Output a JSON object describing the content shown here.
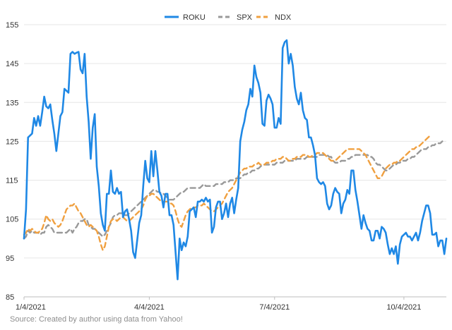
{
  "chart_data": {
    "type": "line",
    "title": "",
    "xlabel": "",
    "ylabel": "",
    "ylim": [
      85,
      155
    ],
    "y_ticks": [
      85,
      95,
      105,
      115,
      125,
      135,
      145,
      155
    ],
    "x_ticks": [
      "1/4/2021",
      "4/4/2021",
      "7/4/2021",
      "10/4/2021"
    ],
    "x_tick_index": [
      0,
      62,
      124,
      188
    ],
    "grid": "horizontal",
    "legend_position": "top-center",
    "source": "Source: Created by author using data from Yahoo!",
    "series": [
      {
        "name": "ROKU",
        "color": "#1f88e5",
        "style": "solid",
        "values": [
          100,
          107.5,
          126,
          126.5,
          127,
          131,
          129,
          131.5,
          129,
          132.5,
          136.5,
          134,
          133.5,
          134.5,
          130.5,
          127,
          122.5,
          127,
          131.5,
          132.5,
          138.5,
          138,
          137.5,
          147.5,
          148,
          147.5,
          147.8,
          148,
          143.5,
          142.5,
          147.5,
          136.5,
          130,
          120.5,
          128.5,
          132,
          118.5,
          113.5,
          106.5,
          103.5,
          102,
          111.5,
          111.5,
          117.5,
          112,
          111.5,
          113,
          111.5,
          112,
          105.5,
          107,
          107.5,
          105,
          102,
          96.5,
          95,
          99.5,
          104,
          106,
          113.5,
          120,
          115.5,
          114.5,
          122.5,
          116,
          122.5,
          117.5,
          112,
          111,
          108,
          111.5,
          111.5,
          106,
          106,
          103.5,
          96.5,
          89.5,
          100,
          97,
          99,
          98,
          100.5,
          107,
          107.5,
          108,
          105.5,
          109.5,
          109.5,
          110,
          109.5,
          110.5,
          109.5,
          110,
          101.5,
          103,
          108,
          109.5,
          109.5,
          105,
          106.5,
          109,
          105.5,
          109,
          110.5,
          106.5,
          110,
          113,
          125,
          128,
          130,
          133,
          134.5,
          138.5,
          136.5,
          144.5,
          141.5,
          140,
          137.5,
          129.5,
          129,
          135.5,
          137,
          136,
          134.5,
          128.5,
          128.5,
          131,
          129.5,
          149,
          150.5,
          151,
          145,
          147.5,
          144.5,
          139,
          136,
          134.5,
          137.5,
          133,
          131,
          130.5,
          126,
          126,
          124,
          121.5,
          115.5,
          114.5,
          114,
          114.5,
          113.5,
          109,
          107.5,
          108.5,
          111.5,
          113,
          112,
          111.5,
          106.5,
          109,
          110,
          112.5,
          111.5,
          117.5,
          117.5,
          112.5,
          109.5,
          106,
          102.5,
          106,
          104,
          102.5,
          102,
          99.5,
          99.5,
          102,
          102,
          100,
          103,
          102.5,
          101.5,
          98.5,
          96,
          97.5,
          96,
          98,
          93.5,
          98.5,
          100.5,
          101,
          101.5,
          100.5,
          100.5,
          99.5,
          100.5,
          101.5,
          99.5,
          101.5,
          104.5,
          106.5,
          108.5,
          108.5,
          106.5,
          101,
          101,
          101.5,
          98,
          99.5,
          99.5,
          96,
          100
        ]
      },
      {
        "name": "SPX",
        "color": "#999999",
        "style": "dashed",
        "values": [
          100,
          100.5,
          102,
          101.5,
          102,
          101.5,
          101.5,
          101.5,
          101,
          101.5,
          101.5,
          103,
          103.5,
          103,
          102.5,
          101.5,
          101.5,
          101.5,
          101.5,
          101.5,
          101.5,
          101.5,
          102,
          102.5,
          101.5,
          102.5,
          103,
          104,
          104.5,
          104.5,
          105,
          105,
          103.5,
          103,
          102.5,
          102.5,
          102,
          101.5,
          101,
          100.5,
          101,
          102,
          103,
          104,
          105.5,
          106,
          106,
          106.5,
          106.5,
          106.5,
          106,
          106,
          106.5,
          107,
          107.5,
          108,
          108.5,
          109,
          109.5,
          110,
          110.5,
          111,
          111.5,
          112,
          112.5,
          112.5,
          112,
          112,
          111.5,
          111.5,
          111,
          110.5,
          110,
          110,
          110,
          110.5,
          111,
          111.5,
          112,
          112,
          112.5,
          113,
          113,
          113,
          113,
          113,
          113,
          113,
          113.5,
          114,
          113.5,
          113.5,
          113.5,
          113.5,
          113.5,
          114,
          114,
          114,
          114,
          114.5,
          114.5,
          114.5,
          115,
          115,
          115,
          115.5,
          115.5,
          115.5,
          116,
          116.5,
          116.5,
          117,
          117,
          117.5,
          117.5,
          118,
          118,
          118.5,
          119,
          119,
          119,
          119,
          119,
          119,
          119,
          119.5,
          119.5,
          119.5,
          119.5,
          120,
          120,
          120,
          120,
          120,
          120,
          120.5,
          120.5,
          120.5,
          120.5,
          120.5,
          121,
          121,
          121,
          121,
          121,
          121,
          121.5,
          121.5,
          121.5,
          121.5,
          121.5,
          121,
          121,
          120,
          119.5,
          119.5,
          119.5,
          120,
          120,
          120,
          120.5,
          120.5,
          121,
          121,
          121.5,
          121.5,
          121.5,
          121.5,
          121.5,
          121.5,
          121.5,
          121,
          121,
          120.5,
          119.5,
          119,
          119,
          118.5,
          118,
          117.5,
          117.5,
          118,
          118.5,
          119,
          119,
          119.5,
          119.5,
          120,
          120,
          120,
          120.5,
          120.5,
          121,
          121,
          121.5,
          122,
          122.5,
          123,
          123,
          123,
          123.5,
          123.5,
          124,
          124,
          124.5,
          124.5,
          124.5,
          125
        ]
      },
      {
        "name": "NDX",
        "color": "#f0a040",
        "style": "dashed",
        "values": [
          101,
          101.5,
          102.5,
          102,
          102.5,
          102,
          101.5,
          101.5,
          102,
          102.5,
          104,
          106,
          105,
          104.5,
          105,
          104,
          103.5,
          103,
          103.5,
          104.5,
          106,
          107.5,
          108,
          108.5,
          108.5,
          109,
          108,
          107,
          106.5,
          105.5,
          104.5,
          103.5,
          103,
          103.5,
          103,
          102.5,
          102,
          100.5,
          98.5,
          97,
          98,
          100.5,
          103,
          104.5,
          105,
          105,
          104.5,
          105,
          105.5,
          105.5,
          105,
          104.5,
          104.5,
          105,
          105.5,
          106,
          106.5,
          107,
          107.5,
          108.5,
          110,
          111,
          111,
          111.5,
          111.5,
          111,
          110.5,
          110,
          109.5,
          109.5,
          109.5,
          109.5,
          109,
          109,
          108.5,
          107,
          105,
          103.5,
          103,
          104.5,
          106,
          107,
          107.5,
          108,
          108,
          108,
          108.5,
          108.5,
          108.5,
          109,
          108.5,
          108,
          107.5,
          107,
          107,
          107.5,
          108,
          108.5,
          109,
          110,
          111,
          112,
          112.5,
          113,
          114,
          115,
          116,
          117,
          117.5,
          118,
          118,
          118.5,
          118.5,
          118.5,
          119,
          119,
          119.5,
          119,
          119,
          119,
          119.5,
          119.5,
          119.5,
          120,
          120,
          120.5,
          120.5,
          120.5,
          121,
          121,
          120.5,
          120,
          120,
          120.5,
          120.5,
          121,
          121,
          121,
          121.5,
          121.5,
          121.5,
          121,
          121,
          121.5,
          121.5,
          122,
          122,
          122,
          122,
          121.5,
          121,
          120.5,
          120,
          120,
          120,
          120.5,
          121,
          121.5,
          122,
          122.5,
          123,
          123,
          123,
          123,
          123,
          123,
          123,
          122.5,
          122,
          121.5,
          120.5,
          119.5,
          118.5,
          117.5,
          116.5,
          115.5,
          115.5,
          116,
          117,
          118,
          118.5,
          119,
          119,
          119.5,
          119.5,
          120,
          120,
          120.5,
          121,
          121.5,
          122,
          122.5,
          123,
          123,
          123.5,
          123.5,
          124,
          124.5,
          125,
          125.5,
          126,
          126.5
        ]
      }
    ]
  }
}
